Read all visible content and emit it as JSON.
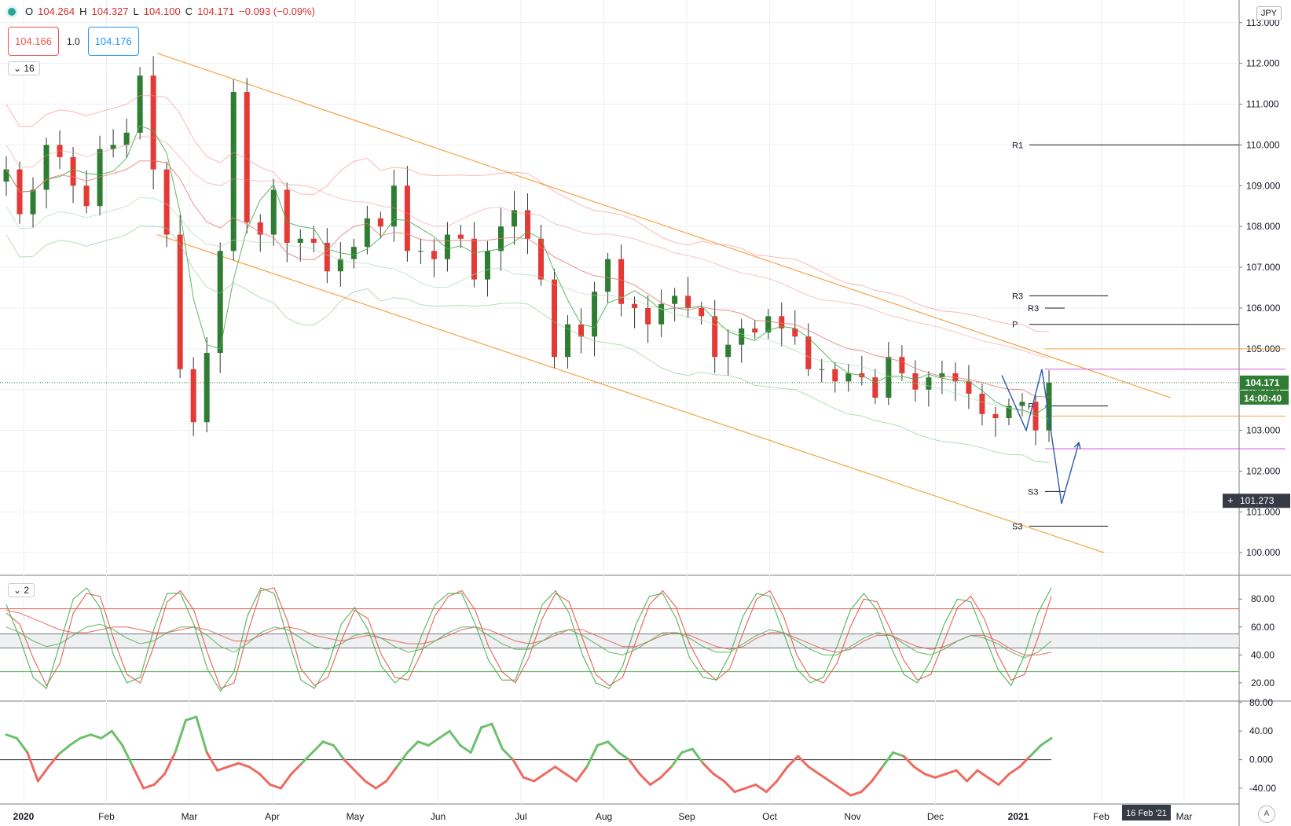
{
  "symbol_currency": "JPY",
  "ohlc": {
    "open_label": "O",
    "open": "104.264",
    "high_label": "H",
    "high": "104.327",
    "low_label": "L",
    "low": "104.100",
    "close_label": "C",
    "close": "104.171",
    "change": "−0.093 (−0.09%)"
  },
  "trade": {
    "sell": "104.166",
    "qty": "1.0",
    "buy": "104.176"
  },
  "pane_toggles": {
    "main": "16",
    "oscillator": "2"
  },
  "colors": {
    "up": "#2e7d32",
    "down": "#e53935",
    "channel": "#f7a347",
    "magenta": "#d95bd9",
    "blue": "#2a5ba8",
    "osc_red": "#e35a4f",
    "osc_green": "#4caf50",
    "momo_up": "#6cc06c",
    "momo_down": "#ee6a60",
    "grid": "#eceff3"
  },
  "chart_data": [
    {
      "type": "candlestick",
      "title": "",
      "ylim": [
        99.6,
        113.4
      ],
      "y_ticks": [
        "113.000",
        "112.000",
        "111.000",
        "110.000",
        "109.000",
        "108.000",
        "107.000",
        "106.000",
        "105.000",
        "104.000",
        "103.000",
        "102.000",
        "101.000",
        "100.000"
      ],
      "x_ticks": [
        "2020",
        "Feb",
        "Mar",
        "Apr",
        "May",
        "Jun",
        "Jul",
        "Aug",
        "Sep",
        "Oct",
        "Nov",
        "Dec",
        "2021",
        "Feb",
        "Mar"
      ],
      "series_close": [
        109.4,
        108.3,
        108.9,
        110.0,
        109.7,
        109.0,
        108.5,
        109.9,
        110.0,
        110.3,
        111.7,
        109.4,
        107.8,
        104.5,
        103.2,
        104.9,
        107.4,
        111.3,
        108.1,
        107.8,
        108.9,
        107.6,
        107.7,
        107.6,
        106.9,
        107.2,
        107.5,
        108.2,
        108.0,
        109.0,
        107.4,
        107.4,
        107.2,
        107.8,
        107.7,
        106.7,
        107.4,
        108.0,
        108.4,
        107.7,
        106.7,
        104.8,
        105.6,
        105.3,
        106.4,
        107.2,
        106.1,
        106.0,
        105.6,
        106.1,
        106.3,
        106.0,
        105.8,
        104.8,
        105.1,
        105.5,
        105.4,
        105.8,
        105.5,
        105.3,
        104.5,
        104.5,
        104.2,
        104.4,
        104.3,
        103.8,
        104.8,
        104.4,
        104.0,
        104.3,
        104.4,
        104.2,
        103.9,
        103.4,
        103.3,
        103.6,
        103.7,
        103.0,
        104.17
      ],
      "pivot_levels": [
        {
          "label": "R1",
          "value": 110.0
        },
        {
          "label": "R3",
          "value": 106.3
        },
        {
          "label": "R3",
          "value": 106.0
        },
        {
          "label": "P",
          "value": 105.6
        },
        {
          "label": "P",
          "value": 103.6
        },
        {
          "label": "S3",
          "value": 101.5
        },
        {
          "label": "S3",
          "value": 100.65
        }
      ],
      "horizontal_lines": [
        105.0,
        104.5,
        103.35,
        102.55
      ],
      "channel": {
        "upper": [
          112.25,
          103.8
        ],
        "lower": [
          107.8,
          100.0
        ]
      },
      "projection": [
        104.35,
        103.0,
        104.5,
        101.2,
        102.7
      ],
      "last_price": "104.171",
      "countdown": "14:00:40",
      "crosshair_price": "101.273",
      "crosshair_date": "16 Feb '21"
    },
    {
      "type": "line",
      "title": "",
      "ylim": [
        7,
        97
      ],
      "y_ticks": [
        "80.00",
        "60.00",
        "40.00",
        "20.00"
      ],
      "levels": [
        73,
        55,
        45,
        28
      ],
      "series": [
        {
          "color": "#e35a4f",
          "values": [
            70,
            62,
            38,
            18,
            34,
            70,
            84,
            82,
            52,
            26,
            20,
            46,
            78,
            86,
            72,
            42,
            16,
            20,
            55,
            86,
            88,
            64,
            30,
            18,
            24,
            50,
            72,
            66,
            40,
            24,
            22,
            42,
            68,
            82,
            86,
            72,
            46,
            28,
            20,
            38,
            66,
            84,
            78,
            52,
            26,
            18,
            24,
            50,
            76,
            86,
            74,
            48,
            30,
            22,
            30,
            56,
            80,
            86,
            68,
            40,
            24,
            20,
            34,
            60,
            80,
            78,
            58,
            36,
            22,
            26,
            50,
            74,
            82,
            66,
            40,
            22,
            26,
            52,
            82
          ]
        },
        {
          "color": "#4caf50",
          "values": [
            76,
            52,
            24,
            16,
            48,
            80,
            88,
            74,
            40,
            20,
            24,
            58,
            84,
            84,
            62,
            30,
            14,
            28,
            68,
            88,
            84,
            52,
            22,
            16,
            32,
            62,
            74,
            58,
            32,
            20,
            28,
            54,
            76,
            84,
            84,
            62,
            36,
            22,
            22,
            48,
            76,
            86,
            70,
            40,
            20,
            16,
            32,
            62,
            82,
            84,
            66,
            38,
            24,
            22,
            40,
            68,
            84,
            82,
            56,
            30,
            20,
            24,
            46,
            72,
            84,
            72,
            46,
            26,
            20,
            36,
            62,
            80,
            78,
            54,
            30,
            18,
            40,
            70,
            88
          ]
        },
        {
          "color": "#e35a4f",
          "values": [
            72,
            70,
            66,
            62,
            58,
            56,
            56,
            58,
            60,
            60,
            58,
            56,
            56,
            58,
            60,
            58,
            54,
            50,
            50,
            54,
            58,
            60,
            58,
            54,
            52,
            50,
            52,
            54,
            52,
            50,
            48,
            48,
            50,
            54,
            58,
            60,
            58,
            54,
            50,
            48,
            50,
            54,
            58,
            58,
            54,
            50,
            46,
            46,
            50,
            54,
            56,
            54,
            50,
            46,
            44,
            46,
            52,
            56,
            56,
            52,
            48,
            44,
            42,
            44,
            50,
            54,
            54,
            50,
            46,
            44,
            46,
            50,
            54,
            54,
            50,
            44,
            40,
            40,
            42
          ]
        },
        {
          "color": "#4caf50",
          "values": [
            60,
            56,
            50,
            46,
            48,
            54,
            60,
            62,
            58,
            52,
            48,
            50,
            56,
            60,
            60,
            54,
            46,
            42,
            48,
            56,
            60,
            58,
            52,
            46,
            44,
            48,
            54,
            56,
            52,
            46,
            42,
            44,
            50,
            56,
            60,
            60,
            54,
            48,
            44,
            44,
            50,
            56,
            58,
            54,
            48,
            42,
            40,
            44,
            50,
            56,
            56,
            52,
            46,
            42,
            42,
            48,
            54,
            58,
            56,
            50,
            44,
            40,
            40,
            46,
            52,
            56,
            54,
            48,
            42,
            40,
            44,
            50,
            54,
            52,
            48,
            42,
            38,
            42,
            50
          ]
        }
      ]
    },
    {
      "type": "line",
      "title": "",
      "ylim": [
        -62,
        82
      ],
      "y_ticks": [
        "80.00",
        "40.00",
        "0.000",
        "-40.00"
      ],
      "zero": 0,
      "values": [
        35,
        30,
        10,
        -30,
        -10,
        8,
        20,
        30,
        35,
        30,
        40,
        20,
        -10,
        -40,
        -35,
        -20,
        10,
        55,
        60,
        10,
        -15,
        -10,
        -5,
        -10,
        -20,
        -35,
        -40,
        -20,
        -5,
        10,
        25,
        20,
        0,
        -15,
        -30,
        -40,
        -30,
        -10,
        10,
        25,
        20,
        30,
        40,
        20,
        10,
        45,
        50,
        15,
        0,
        -25,
        -30,
        -20,
        -10,
        -20,
        -30,
        -10,
        20,
        25,
        10,
        0,
        -20,
        -35,
        -25,
        -10,
        10,
        15,
        -5,
        -20,
        -30,
        -45,
        -40,
        -35,
        -45,
        -30,
        -10,
        5,
        -10,
        -20,
        -30,
        -40,
        -50,
        -45,
        -30,
        -10,
        10,
        5,
        -10,
        -20,
        -25,
        -20,
        -15,
        -30,
        -15,
        -25,
        -35,
        -20,
        -10,
        5,
        20,
        30
      ]
    }
  ]
}
